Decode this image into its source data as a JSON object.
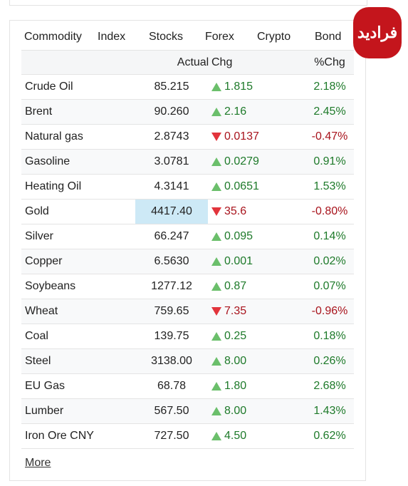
{
  "logo": "فرادید",
  "tabs": [
    "Commodity",
    "Index",
    "Stocks",
    "Forex",
    "Crypto",
    "Bond"
  ],
  "active_tab": 0,
  "table": {
    "header": [
      "Actual",
      "Chg",
      "%Chg"
    ],
    "rows": [
      {
        "name": "Crude Oil",
        "actual": "85.215",
        "chg": "1.815",
        "pct": "2.18%",
        "dir": "up"
      },
      {
        "name": "Brent",
        "actual": "90.260",
        "chg": "2.16",
        "pct": "2.45%",
        "dir": "up"
      },
      {
        "name": "Natural gas",
        "actual": "2.8743",
        "chg": "0.0137",
        "pct": "-0.47%",
        "dir": "down"
      },
      {
        "name": "Gasoline",
        "actual": "3.0781",
        "chg": "0.0279",
        "pct": "0.91%",
        "dir": "up"
      },
      {
        "name": "Heating Oil",
        "actual": "4.3141",
        "chg": "0.0651",
        "pct": "1.53%",
        "dir": "up"
      },
      {
        "name": "Gold",
        "actual": "4417.40",
        "chg": "35.6",
        "pct": "-0.80%",
        "dir": "down",
        "highlight": true
      },
      {
        "name": "Silver",
        "actual": "66.247",
        "chg": "0.095",
        "pct": "0.14%",
        "dir": "up"
      },
      {
        "name": "Copper",
        "actual": "6.5630",
        "chg": "0.001",
        "pct": "0.02%",
        "dir": "up"
      },
      {
        "name": "Soybeans",
        "actual": "1277.12",
        "chg": "0.87",
        "pct": "0.07%",
        "dir": "up"
      },
      {
        "name": "Wheat",
        "actual": "759.65",
        "chg": "7.35",
        "pct": "-0.96%",
        "dir": "down"
      },
      {
        "name": "Coal",
        "actual": "139.75",
        "chg": "0.25",
        "pct": "0.18%",
        "dir": "up"
      },
      {
        "name": "Steel",
        "actual": "3138.00",
        "chg": "8.00",
        "pct": "0.26%",
        "dir": "up"
      },
      {
        "name": "EU Gas",
        "actual": "68.78",
        "chg": "1.80",
        "pct": "2.68%",
        "dir": "up"
      },
      {
        "name": "Lumber",
        "actual": "567.50",
        "chg": "8.00",
        "pct": "1.43%",
        "dir": "up"
      },
      {
        "name": "Iron Ore CNY",
        "actual": "727.50",
        "chg": "4.50",
        "pct": "0.62%",
        "dir": "up"
      }
    ]
  },
  "more": "More"
}
